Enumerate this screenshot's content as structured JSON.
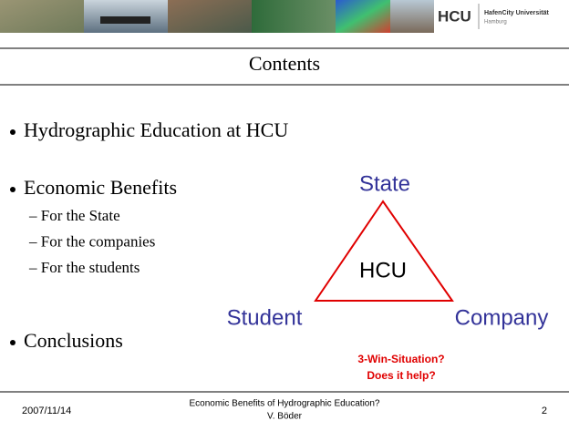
{
  "header": {
    "logo": "HCU",
    "logo_name": "HafenCity Universität",
    "logo_city": "Hamburg"
  },
  "title": "Contents",
  "bullets": [
    {
      "text": "Hydrographic Education at HCU",
      "subitems": []
    },
    {
      "text": "Economic Benefits",
      "subitems": [
        "– For the State",
        "– For the companies",
        "– For the students"
      ]
    },
    {
      "text": "Conclusions",
      "subitems": []
    }
  ],
  "diagram": {
    "top": "State",
    "center": "HCU",
    "left": "Student",
    "right": "Company",
    "note": [
      "3-Win-Situation?",
      "Does it help?"
    ]
  },
  "footer": {
    "date": "2007/11/14",
    "center": [
      "Economic Benefits of Hydrographic Education?",
      "V. Böder"
    ],
    "page": "2"
  }
}
